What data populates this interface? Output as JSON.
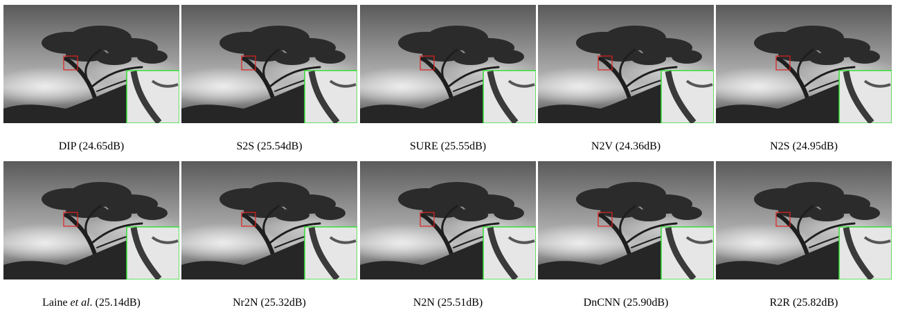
{
  "panels": [
    {
      "text": "DIP (24.65dB)"
    },
    {
      "text": "S2S (25.54dB)"
    },
    {
      "text": "SURE (25.55dB)"
    },
    {
      "text": "N2V (24.36dB)"
    },
    {
      "text": "N2S (24.95dB)"
    },
    {
      "before": "Laine ",
      "italic": "et al",
      "after": ". (25.14dB)"
    },
    {
      "text": "Nr2N (25.32dB)"
    },
    {
      "text": "N2N (25.51dB)"
    },
    {
      "text": "DnCNN (25.90dB)"
    },
    {
      "text": "R2R (25.82dB)"
    }
  ]
}
